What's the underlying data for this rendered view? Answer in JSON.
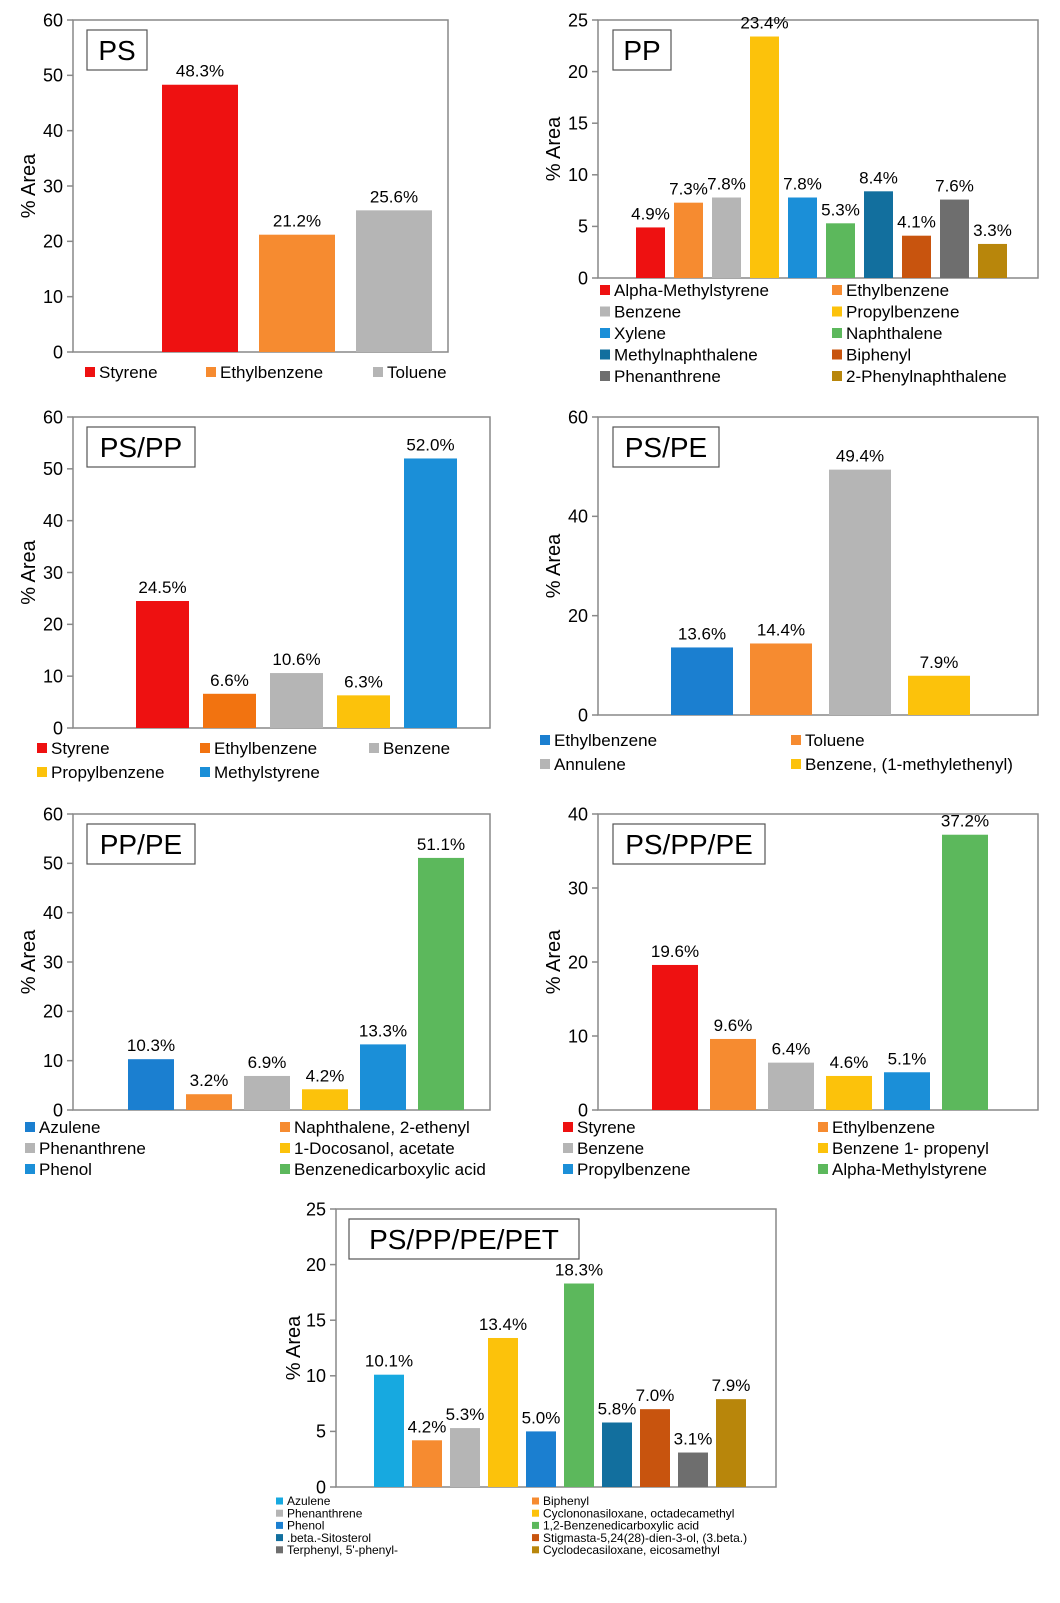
{
  "chart_data": [
    {
      "type": "bar",
      "title": "PS",
      "ylabel": "% Area",
      "ylim": [
        0,
        60
      ],
      "yticks": [
        0,
        10,
        20,
        30,
        40,
        50,
        60
      ],
      "legend_position": "bottom",
      "grid": false,
      "series": [
        {
          "name": "Styrene",
          "value": 48.3,
          "label": "48.3%",
          "color": "#ee1111"
        },
        {
          "name": "Ethylbenzene",
          "value": 21.2,
          "label": "21.2%",
          "color": "#f68b30"
        },
        {
          "name": "Toluene",
          "value": 25.6,
          "label": "25.6%",
          "color": "#b5b5b5"
        }
      ]
    },
    {
      "type": "bar",
      "title": "PP",
      "ylabel": "% Area",
      "ylim": [
        0,
        25
      ],
      "yticks": [
        0,
        5,
        10,
        15,
        20,
        25
      ],
      "legend_position": "bottom",
      "grid": false,
      "series": [
        {
          "name": "Alpha-Methylstyrene",
          "value": 4.9,
          "label": "4.9%",
          "color": "#ee1111"
        },
        {
          "name": "Ethylbenzene",
          "value": 7.3,
          "label": "7.3%",
          "color": "#f68b30"
        },
        {
          "name": "Benzene",
          "value": 7.8,
          "label": "7.8%",
          "color": "#b5b5b5"
        },
        {
          "name": "Propylbenzene",
          "value": 23.4,
          "label": "23.4%",
          "color": "#fcc20b"
        },
        {
          "name": "Xylene",
          "value": 7.8,
          "label": "7.8%",
          "color": "#1b8fd8"
        },
        {
          "name": "Naphthalene",
          "value": 5.3,
          "label": "5.3%",
          "color": "#5cb85c"
        },
        {
          "name": "Methylnaphthalene",
          "value": 8.4,
          "label": "8.4%",
          "color": "#126f9e"
        },
        {
          "name": "Biphenyl",
          "value": 4.1,
          "label": "4.1%",
          "color": "#c8540e"
        },
        {
          "name": "Phenanthrene",
          "value": 7.6,
          "label": "7.6%",
          "color": "#6e6e6e"
        },
        {
          "name": "2-Phenylnaphthalene",
          "value": 3.3,
          "label": "3.3%",
          "color": "#b8860b"
        }
      ]
    },
    {
      "type": "bar",
      "title": "PS/PP",
      "ylabel": "% Area",
      "ylim": [
        0,
        60
      ],
      "yticks": [
        0,
        10,
        20,
        30,
        40,
        50,
        60
      ],
      "legend_position": "bottom",
      "grid": false,
      "series": [
        {
          "name": "Styrene",
          "value": 24.5,
          "label": "24.5%",
          "color": "#ee1111"
        },
        {
          "name": "Ethylbenzene",
          "value": 6.6,
          "label": "6.6%",
          "color": "#f27310"
        },
        {
          "name": "Benzene",
          "value": 10.6,
          "label": "10.6%",
          "color": "#b5b5b5"
        },
        {
          "name": "Propylbenzene",
          "value": 6.3,
          "label": "6.3%",
          "color": "#fcc20b"
        },
        {
          "name": "Methylstyrene",
          "value": 52.0,
          "label": "52.0%",
          "color": "#1b8fd8"
        }
      ]
    },
    {
      "type": "bar",
      "title": "PS/PE",
      "ylabel": "% Area",
      "ylim": [
        0,
        60
      ],
      "yticks": [
        0,
        20,
        40,
        60
      ],
      "legend_position": "bottom",
      "grid": false,
      "series": [
        {
          "name": "Ethylbenzene",
          "value": 13.6,
          "label": "13.6%",
          "color": "#1b7fd0"
        },
        {
          "name": "Toluene",
          "value": 14.4,
          "label": "14.4%",
          "color": "#f68b30"
        },
        {
          "name": "Annulene",
          "value": 49.4,
          "label": "49.4%",
          "color": "#b5b5b5"
        },
        {
          "name": "Benzene, (1-methylethenyl)",
          "value": 7.9,
          "label": "7.9%",
          "color": "#fcc20b"
        }
      ]
    },
    {
      "type": "bar",
      "title": "PP/PE",
      "ylabel": "% Area",
      "ylim": [
        0,
        60
      ],
      "yticks": [
        0,
        10,
        20,
        30,
        40,
        50,
        60
      ],
      "legend_position": "bottom",
      "grid": false,
      "series": [
        {
          "name": "Azulene",
          "value": 10.3,
          "label": "10.3%",
          "color": "#1b7fd0"
        },
        {
          "name": "Naphthalene, 2-ethenyl",
          "value": 3.2,
          "label": "3.2%",
          "color": "#f68b30"
        },
        {
          "name": "Phenanthrene",
          "value": 6.9,
          "label": "6.9%",
          "color": "#b5b5b5"
        },
        {
          "name": "1-Docosanol, acetate",
          "value": 4.2,
          "label": "4.2%",
          "color": "#fcc20b"
        },
        {
          "name": "Phenol",
          "value": 13.3,
          "label": "13.3%",
          "color": "#1b8fd8"
        },
        {
          "name": "Benzenedicarboxylic acid",
          "value": 51.1,
          "label": "51.1%",
          "color": "#5cb85c"
        }
      ]
    },
    {
      "type": "bar",
      "title": "PS/PP/PE",
      "ylabel": "% Area",
      "ylim": [
        0,
        40
      ],
      "yticks": [
        0,
        10,
        20,
        30,
        40
      ],
      "legend_position": "bottom",
      "grid": false,
      "series": [
        {
          "name": "Styrene",
          "value": 19.6,
          "label": "19.6%",
          "color": "#ee1111"
        },
        {
          "name": "Ethylbenzene",
          "value": 9.6,
          "label": "9.6%",
          "color": "#f68b30"
        },
        {
          "name": "Benzene",
          "value": 6.4,
          "label": "6.4%",
          "color": "#b5b5b5"
        },
        {
          "name": "Benzene 1- propenyl",
          "value": 4.6,
          "label": "4.6%",
          "color": "#fcc20b"
        },
        {
          "name": "Propylbenzene",
          "value": 5.1,
          "label": "5.1%",
          "color": "#1b8fd8"
        },
        {
          "name": "Alpha-Methylstyrene",
          "value": 37.2,
          "label": "37.2%",
          "color": "#5cb85c"
        }
      ]
    },
    {
      "type": "bar",
      "title": "PS/PP/PE/PET",
      "ylabel": "% Area",
      "ylim": [
        0,
        25
      ],
      "yticks": [
        0,
        5,
        10,
        15,
        20,
        25
      ],
      "legend_position": "bottom",
      "grid": false,
      "series": [
        {
          "name": "Azulene",
          "value": 10.1,
          "label": "10.1%",
          "color": "#17a9e0"
        },
        {
          "name": "Biphenyl",
          "value": 4.2,
          "label": "4.2%",
          "color": "#f68b30"
        },
        {
          "name": "Phenanthrene",
          "value": 5.3,
          "label": "5.3%",
          "color": "#b5b5b5"
        },
        {
          "name": "Cyclononasiloxane, octadecamethyl",
          "value": 13.4,
          "label": "13.4%",
          "color": "#fcc20b"
        },
        {
          "name": "Phenol",
          "value": 5.0,
          "label": "5.0%",
          "color": "#1b7fd0"
        },
        {
          "name": "1,2-Benzenedicarboxylic acid",
          "value": 18.3,
          "label": "18.3%",
          "color": "#5cb85c"
        },
        {
          "name": ".beta.-Sitosterol",
          "value": 5.8,
          "label": "5.8%",
          "color": "#126f9e"
        },
        {
          "name": "Stigmasta-5,24(28)-dien-3-ol, (3.beta.)",
          "value": 7.0,
          "label": "7.0%",
          "color": "#c8540e"
        },
        {
          "name": "Terphenyl, 5'-phenyl-",
          "value": 3.1,
          "label": "3.1%",
          "color": "#6e6e6e"
        },
        {
          "name": "Cyclodecasiloxane, eicosamethyl",
          "value": 7.9,
          "label": "7.9%",
          "color": "#b8860b"
        }
      ]
    }
  ]
}
